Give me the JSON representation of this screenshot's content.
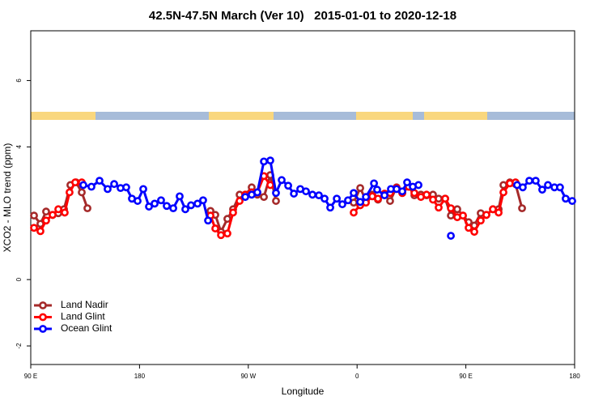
{
  "chart_data": {
    "type": "line",
    "title": "42.5N-47.5N March (Ver 10)   2015-01-01 to 2020-12-18",
    "x_label": "Longitude",
    "y_label": "XCO2 - MLO trend (ppm)",
    "xlim": [
      90,
      540
    ],
    "xticks": [
      {
        "value": 90,
        "label": "90 E"
      },
      180,
      {
        "value": 270,
        "label": "90 W"
      },
      {
        "value": 360,
        "label": "0"
      },
      {
        "value": 450,
        "label": "90 E"
      },
      {
        "value": 540,
        "label": "180"
      }
    ],
    "ylim": [
      -2.56,
      7.5
    ],
    "yticks": [
      -2,
      0,
      4,
      6
    ],
    "legend": "bottomleft",
    "series": [
      {
        "name": "Land Nadir",
        "color": "#a52a2a",
        "x": [
          92.7,
          98.0,
          102.7,
          108.1,
          112.8,
          117.5,
          122.8,
          127.5,
          132.2,
          136.9,
          200,
          238.7,
          242.7,
          247.4,
          252.7,
          257.4,
          262.8,
          267.5,
          272.8,
          277.5,
          282.9,
          288.2,
          292.9,
          330,
          357.2,
          362.6,
          367.3,
          372.6,
          377.3,
          382.7,
          387.3,
          392.7,
          397.4,
          402.7,
          407.4,
          412.8,
          417.5,
          422.8,
          427.5,
          432.9,
          437.6,
          442.9,
          447.6,
          452.3,
          457.0,
          462.3,
          467.0,
          472.4,
          477.1,
          481.1,
          486.4,
          491.1,
          496.5
        ],
        "values": [
          1.93,
          1.68,
          2.05,
          1.95,
          2.0,
          2.12,
          2.85,
          2.93,
          2.63,
          2.15,
          null,
          2.07,
          1.95,
          1.44,
          1.83,
          2.12,
          2.56,
          2.56,
          2.78,
          2.56,
          2.49,
          3.15,
          2.37,
          null,
          2.32,
          2.76,
          2.39,
          2.56,
          2.41,
          2.56,
          2.37,
          2.78,
          2.61,
          2.8,
          2.54,
          2.56,
          2.54,
          2.56,
          2.44,
          2.44,
          1.93,
          2.12,
          1.93,
          1.73,
          1.63,
          2.0,
          1.95,
          2.12,
          2.12,
          2.85,
          2.93,
          2.88,
          2.15
        ]
      },
      {
        "name": "Land Glint",
        "color": "#ff0000",
        "x": [
          92.7,
          98.0,
          102.7,
          108.1,
          112.8,
          118.1,
          122.1,
          126.8,
          132.2,
          200,
          238.7,
          242.7,
          247.4,
          252.7,
          257.4,
          262.8,
          267.5,
          272.8,
          277.5,
          282.9,
          288.2,
          330,
          357.2,
          362.6,
          367.3,
          372.6,
          377.3,
          382.7,
          387.3,
          392.7,
          397.4,
          402.7,
          407.4,
          412.8,
          417.5,
          422.8,
          427.5,
          432.9,
          437.6,
          442.9,
          447.6,
          452.3,
          457.0,
          462.3,
          467.0,
          472.4,
          477.1,
          481.1,
          486.4,
          491.1
        ],
        "values": [
          1.56,
          1.46,
          1.78,
          1.95,
          2.12,
          2.02,
          2.63,
          2.93,
          2.93,
          null,
          1.93,
          1.54,
          1.34,
          1.39,
          2.02,
          2.37,
          2.56,
          2.63,
          2.63,
          3.12,
          2.85,
          null,
          2.02,
          2.24,
          2.32,
          2.51,
          2.44,
          2.59,
          2.61,
          2.76,
          2.61,
          2.8,
          2.61,
          2.49,
          2.56,
          2.41,
          2.17,
          2.44,
          2.15,
          1.88,
          1.93,
          1.56,
          1.44,
          1.78,
          1.95,
          2.12,
          2.02,
          2.63,
          2.9,
          2.93
        ]
      },
      {
        "name": "Ocean Glint",
        "color": "#0000ff",
        "x": [
          133.5,
          140.2,
          146.9,
          153.6,
          159.0,
          164.3,
          169.0,
          173.7,
          178.4,
          183.1,
          187.8,
          192.5,
          197.8,
          202.5,
          207.9,
          213.2,
          217.9,
          222.6,
          228.0,
          232.6,
          236.7,
          250,
          267.5,
          272.8,
          277.5,
          282.9,
          288.2,
          292.9,
          297.6,
          303.0,
          307.7,
          313.0,
          317.7,
          323.1,
          328.4,
          333.1,
          337.8,
          343.2,
          347.8,
          352.5,
          357.2,
          362.6,
          367.3,
          374.0,
          376.6,
          382.7,
          388.0,
          392.7,
          397.4,
          401.4,
          406.1,
          410.8,
          425,
          437.6,
          470,
          492.4,
          497.1,
          502.5,
          507.8,
          513.2,
          517.9,
          523.3,
          527.9,
          532.6,
          538.0
        ],
        "values": [
          2.85,
          2.8,
          2.98,
          2.73,
          2.88,
          2.76,
          2.78,
          2.44,
          2.37,
          2.73,
          2.2,
          2.29,
          2.39,
          2.22,
          2.15,
          2.51,
          2.12,
          2.24,
          2.29,
          2.39,
          1.78,
          null,
          2.49,
          2.56,
          2.63,
          3.56,
          3.59,
          2.61,
          3.0,
          2.83,
          2.59,
          2.73,
          2.66,
          2.56,
          2.54,
          2.44,
          2.17,
          2.44,
          2.27,
          2.39,
          2.61,
          2.34,
          2.49,
          2.9,
          2.71,
          2.54,
          2.73,
          2.73,
          2.66,
          2.93,
          2.8,
          2.85,
          null,
          1.32,
          null,
          2.85,
          2.78,
          2.98,
          2.98,
          2.71,
          2.85,
          2.78,
          2.78,
          2.44,
          2.37
        ]
      }
    ]
  }
}
